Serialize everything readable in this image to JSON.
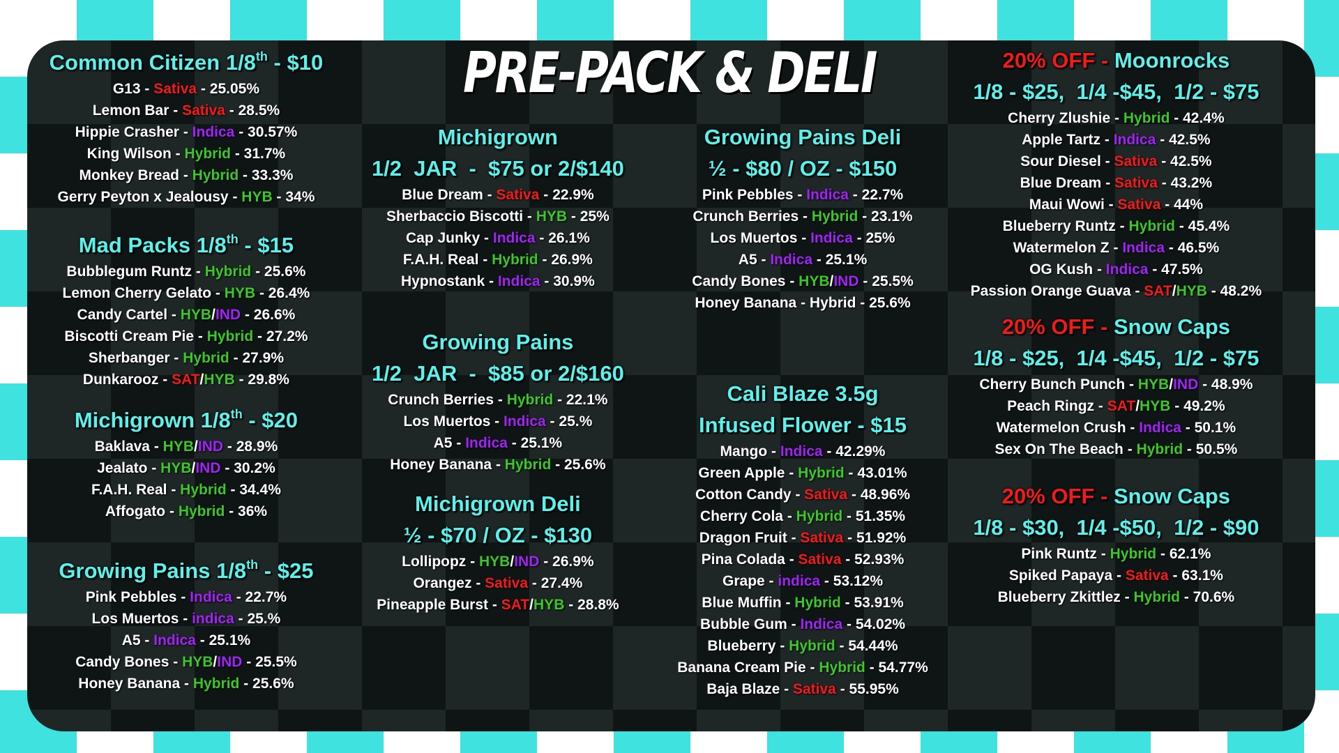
{
  "title": "PRE-PACK & DELI",
  "separator": "-",
  "type_separator": "/",
  "sections": [
    {
      "heading": [
        [
          {
            "text": "Common Citizen 1/8"
          },
          {
            "text": "th",
            "sup": true
          },
          {
            "text": " - $10"
          }
        ]
      ],
      "items": [
        {
          "name": "G13",
          "type": [
            [
              "Sativa",
              "#f21b1b"
            ]
          ],
          "thc": "25.05%"
        },
        {
          "name": "Lemon Bar",
          "type": [
            [
              "Sativa",
              "#f21b1b"
            ]
          ],
          "thc": "28.5%"
        },
        {
          "name": "Hippie Crasher",
          "type": [
            [
              "Indica",
              "#a223f5"
            ]
          ],
          "thc": "30.57%"
        },
        {
          "name": "King Wilson",
          "type": [
            [
              "Hybrid",
              "#3ec72a"
            ]
          ],
          "thc": "31.7%"
        },
        {
          "name": "Monkey Bread",
          "type": [
            [
              "Hybrid",
              "#3ec72a"
            ]
          ],
          "thc": "33.3%"
        },
        {
          "name": "Gerry Peyton x Jealousy",
          "type": [
            [
              "HYB",
              "#3ec72a"
            ]
          ],
          "thc": "34%"
        }
      ]
    },
    {
      "heading": [
        [
          {
            "text": "Mad Packs 1/8"
          },
          {
            "text": "th",
            "sup": true
          },
          {
            "text": " - $15"
          }
        ]
      ],
      "items": [
        {
          "name": "Bubblegum Runtz",
          "type": [
            [
              "Hybrid",
              "#3ec72a"
            ]
          ],
          "thc": "25.6%"
        },
        {
          "name": "Lemon Cherry Gelato",
          "type": [
            [
              "HYB",
              "#3ec72a"
            ]
          ],
          "thc": "26.4%"
        },
        {
          "name": "Candy Cartel",
          "type": [
            [
              "HYB",
              "#3ec72a"
            ],
            [
              "IND",
              "#a223f5"
            ]
          ],
          "thc": "26.6%"
        },
        {
          "name": "Biscotti Cream Pie",
          "type": [
            [
              "Hybrid",
              "#3ec72a"
            ]
          ],
          "thc": "27.2%"
        },
        {
          "name": "Sherbanger",
          "type": [
            [
              "Hybrid",
              "#3ec72a"
            ]
          ],
          "thc": "27.9%"
        },
        {
          "name": "Dunkarooz",
          "type": [
            [
              "SAT",
              "#f21b1b"
            ],
            [
              "HYB",
              "#3ec72a"
            ]
          ],
          "thc": "29.8%"
        }
      ]
    },
    {
      "heading": [
        [
          {
            "text": "Michigrown 1/8"
          },
          {
            "text": "th",
            "sup": true
          },
          {
            "text": " - $20"
          }
        ]
      ],
      "items": [
        {
          "name": "Baklava",
          "type": [
            [
              "HYB",
              "#3ec72a"
            ],
            [
              "IND",
              "#a223f5"
            ]
          ],
          "thc": "28.9%"
        },
        {
          "name": "Jealato",
          "type": [
            [
              "HYB",
              "#3ec72a"
            ],
            [
              "IND",
              "#a223f5"
            ]
          ],
          "thc": "30.2%"
        },
        {
          "name": "F.A.H. Real",
          "type": [
            [
              "Hybrid",
              "#3ec72a"
            ]
          ],
          "thc": "34.4%"
        },
        {
          "name": "Affogato",
          "type": [
            [
              "Hybrid",
              "#3ec72a"
            ]
          ],
          "thc": "36%"
        }
      ]
    },
    {
      "heading": [
        [
          {
            "text": "Growing Pains 1/8"
          },
          {
            "text": "th",
            "sup": true
          },
          {
            "text": " - $25"
          }
        ]
      ],
      "items": [
        {
          "name": "Pink Pebbles",
          "type": [
            [
              "Indica",
              "#a223f5"
            ]
          ],
          "thc": "22.7%"
        },
        {
          "name": "Los Muertos",
          "type": [
            [
              "indica",
              "#a223f5"
            ]
          ],
          "thc": "25.%"
        },
        {
          "name": "A5",
          "type": [
            [
              "Indica",
              "#a223f5"
            ]
          ],
          "thc": "25.1%"
        },
        {
          "name": "Candy Bones",
          "type": [
            [
              "HYB",
              "#3ec72a"
            ],
            [
              "IND",
              "#a223f5"
            ]
          ],
          "thc": "25.5%"
        },
        {
          "name": "Honey Banana",
          "type": [
            [
              "Hybrid",
              "#3ec72a"
            ]
          ],
          "thc": "25.6%"
        }
      ]
    },
    {
      "heading": [
        [
          {
            "text": "Michigrown"
          }
        ],
        [
          {
            "text": "1/2  JAR  -  $75 or 2/$140"
          }
        ]
      ],
      "items": [
        {
          "name": "Blue Dream",
          "type": [
            [
              "Sativa",
              "#f21b1b"
            ]
          ],
          "thc": "22.9%"
        },
        {
          "name": "Sherbaccio Biscotti",
          "type": [
            [
              "HYB",
              "#3ec72a"
            ]
          ],
          "thc": "25%"
        },
        {
          "name": "Cap Junky",
          "type": [
            [
              "Indica",
              "#a223f5"
            ]
          ],
          "thc": "26.1%"
        },
        {
          "name": "F.A.H. Real",
          "type": [
            [
              "Hybrid",
              "#3ec72a"
            ]
          ],
          "thc": "26.9%"
        },
        {
          "name": "Hypnostank",
          "type": [
            [
              "Indica",
              "#a223f5"
            ]
          ],
          "thc": "30.9%"
        }
      ]
    },
    {
      "heading": [
        [
          {
            "text": "Growing Pains"
          }
        ],
        [
          {
            "text": "1/2  JAR  -  $85 or 2/$160"
          }
        ]
      ],
      "items": [
        {
          "name": "Crunch Berries",
          "type": [
            [
              "Hybrid",
              "#3ec72a"
            ]
          ],
          "thc": "22.1%"
        },
        {
          "name": "Los Muertos",
          "type": [
            [
              "Indica",
              "#a223f5"
            ]
          ],
          "thc": "25.%"
        },
        {
          "name": "A5",
          "type": [
            [
              "Indica",
              "#a223f5"
            ]
          ],
          "thc": "25.1%"
        },
        {
          "name": "Honey Banana",
          "type": [
            [
              "Hybrid",
              "#3ec72a"
            ]
          ],
          "thc": "25.6%"
        }
      ]
    },
    {
      "heading": [
        [
          {
            "text": "Michigrown Deli"
          }
        ],
        [
          {
            "text": "½ - $70 / OZ - $130"
          }
        ]
      ],
      "items": [
        {
          "name": "Lollipopz",
          "type": [
            [
              "HYB",
              "#3ec72a"
            ],
            [
              "IND",
              "#a223f5"
            ]
          ],
          "thc": "26.9%"
        },
        {
          "name": "Orangez",
          "type": [
            [
              "Sativa",
              "#f21b1b"
            ]
          ],
          "thc": "27.4%"
        },
        {
          "name": "Pineapple Burst",
          "type": [
            [
              "SAT",
              "#f21b1b"
            ],
            [
              "HYB",
              "#3ec72a"
            ]
          ],
          "thc": "28.8%"
        }
      ]
    },
    {
      "heading": [
        [
          {
            "text": "Growing Pains Deli"
          }
        ],
        [
          {
            "text": "½ - $80 / OZ - $150"
          }
        ]
      ],
      "items": [
        {
          "name": "Pink Pebbles",
          "type": [
            [
              "Indica",
              "#a223f5"
            ]
          ],
          "thc": "22.7%"
        },
        {
          "name": "Crunch Berries",
          "type": [
            [
              "Hybrid",
              "#3ec72a"
            ]
          ],
          "thc": "23.1%"
        },
        {
          "name": "Los Muertos",
          "type": [
            [
              "Indica",
              "#a223f5"
            ]
          ],
          "thc": "25%"
        },
        {
          "name": "A5",
          "type": [
            [
              "Indica",
              "#a223f5"
            ]
          ],
          "thc": "25.1%"
        },
        {
          "name": "Candy Bones",
          "type": [
            [
              "HYB",
              "#3ec72a"
            ],
            [
              "IND",
              "#a223f5"
            ]
          ],
          "thc": "25.5%"
        },
        {
          "name": "Honey Banana",
          "type": [
            [
              "Hybrid",
              "#ffffff"
            ]
          ],
          "thc": "25.6%"
        }
      ]
    },
    {
      "heading": [
        [
          {
            "text": "Cali Blaze 3.5g"
          }
        ],
        [
          {
            "text": "Infused Flower - $15"
          }
        ]
      ],
      "items": [
        {
          "name": "Mango",
          "type": [
            [
              "Indica",
              "#a223f5"
            ]
          ],
          "thc": "42.29%"
        },
        {
          "name": "Green Apple",
          "type": [
            [
              "Hybrid",
              "#3ec72a"
            ]
          ],
          "thc": "43.01%"
        },
        {
          "name": "Cotton Candy",
          "type": [
            [
              "Sativa",
              "#f21b1b"
            ]
          ],
          "thc": "48.96%"
        },
        {
          "name": "Cherry Cola",
          "type": [
            [
              "Hybrid",
              "#3ec72a"
            ]
          ],
          "thc": "51.35%"
        },
        {
          "name": "Dragon Fruit",
          "type": [
            [
              "Sativa",
              "#f21b1b"
            ]
          ],
          "thc": "51.92%"
        },
        {
          "name": "Pina Colada",
          "type": [
            [
              "Sativa",
              "#f21b1b"
            ]
          ],
          "thc": "52.93%"
        },
        {
          "name": "Grape",
          "type": [
            [
              "indica",
              "#a223f5"
            ]
          ],
          "thc": "53.12%"
        },
        {
          "name": "Blue Muffin",
          "type": [
            [
              "Hybrid",
              "#3ec72a"
            ]
          ],
          "thc": "53.91%"
        },
        {
          "name": "Bubble Gum",
          "type": [
            [
              "Indica",
              "#a223f5"
            ]
          ],
          "thc": "54.02%"
        },
        {
          "name": "Blueberry",
          "type": [
            [
              "Hybrid",
              "#3ec72a"
            ]
          ],
          "thc": "54.44%"
        },
        {
          "name": "Banana Cream Pie",
          "type": [
            [
              "Hybrid",
              "#3ec72a"
            ]
          ],
          "thc": "54.77%"
        },
        {
          "name": "Baja Blaze",
          "type": [
            [
              "Sativa",
              "#f21b1b"
            ]
          ],
          "thc": "55.95%"
        }
      ]
    },
    {
      "heading": [
        [
          {
            "text": "20% OFF - ",
            "color": "#f21b1b"
          },
          {
            "text": "Moonrocks"
          }
        ],
        [
          {
            "text": "1/8 - $25,  1/4 -$45,  1/2 - $75"
          }
        ]
      ],
      "items": [
        {
          "name": "Cherry Zlushie",
          "type": [
            [
              "Hybrid",
              "#3ec72a"
            ]
          ],
          "thc": "42.4%"
        },
        {
          "name": "Apple Tartz",
          "type": [
            [
              "Indica",
              "#a223f5"
            ]
          ],
          "thc": "42.5%"
        },
        {
          "name": "Sour Diesel",
          "type": [
            [
              "Sativa",
              "#f21b1b"
            ]
          ],
          "thc": "42.5%"
        },
        {
          "name": "Blue Dream",
          "type": [
            [
              "Sativa",
              "#f21b1b"
            ]
          ],
          "thc": "43.2%"
        },
        {
          "name": "Maui Wowi",
          "type": [
            [
              "Sativa",
              "#f21b1b"
            ]
          ],
          "thc": "44%"
        },
        {
          "name": "Blueberry Runtz",
          "type": [
            [
              "Hybrid",
              "#3ec72a"
            ]
          ],
          "thc": "45.4%"
        },
        {
          "name": "Watermelon Z",
          "type": [
            [
              "Indica",
              "#a223f5"
            ]
          ],
          "thc": "46.5%"
        },
        {
          "name": "OG Kush",
          "type": [
            [
              "Indica",
              "#a223f5"
            ]
          ],
          "thc": "47.5%"
        },
        {
          "name": "Passion Orange Guava",
          "type": [
            [
              "SAT",
              "#f21b1b"
            ],
            [
              "HYB",
              "#3ec72a"
            ]
          ],
          "thc": "48.2%"
        }
      ]
    },
    {
      "heading": [
        [
          {
            "text": "20% OFF - ",
            "color": "#f21b1b"
          },
          {
            "text": "Snow Caps"
          }
        ],
        [
          {
            "text": "1/8 - $25,  1/4 -$45,  1/2 - $75"
          }
        ]
      ],
      "items": [
        {
          "name": "Cherry Bunch Punch",
          "type": [
            [
              "HYB",
              "#3ec72a"
            ],
            [
              "IND",
              "#a223f5"
            ]
          ],
          "thc": "48.9%"
        },
        {
          "name": "Peach Ringz",
          "type": [
            [
              "SAT",
              "#f21b1b"
            ],
            [
              "HYB",
              "#3ec72a"
            ]
          ],
          "thc": "49.2%"
        },
        {
          "name": "Watermelon Crush",
          "type": [
            [
              "Indica",
              "#a223f5"
            ]
          ],
          "thc": "50.1%"
        },
        {
          "name": "Sex On The Beach",
          "type": [
            [
              "Hybrid",
              "#3ec72a"
            ]
          ],
          "thc": "50.5%"
        }
      ]
    },
    {
      "heading": [
        [
          {
            "text": "20% OFF - ",
            "color": "#f21b1b"
          },
          {
            "text": "Snow Caps"
          }
        ],
        [
          {
            "text": "1/8 - $30,  1/4 -$50,  1/2 - $90"
          }
        ]
      ],
      "items": [
        {
          "name": "Pink Runtz",
          "type": [
            [
              "Hybrid",
              "#3ec72a"
            ]
          ],
          "thc": "62.1%"
        },
        {
          "name": "Spiked Papaya",
          "type": [
            [
              "Sativa",
              "#f21b1b"
            ]
          ],
          "thc": "63.1%"
        },
        {
          "name": "Blueberry Zkittlez",
          "type": [
            [
              "Hybrid",
              "#3ec72a"
            ]
          ],
          "thc": "70.6%"
        }
      ]
    }
  ]
}
